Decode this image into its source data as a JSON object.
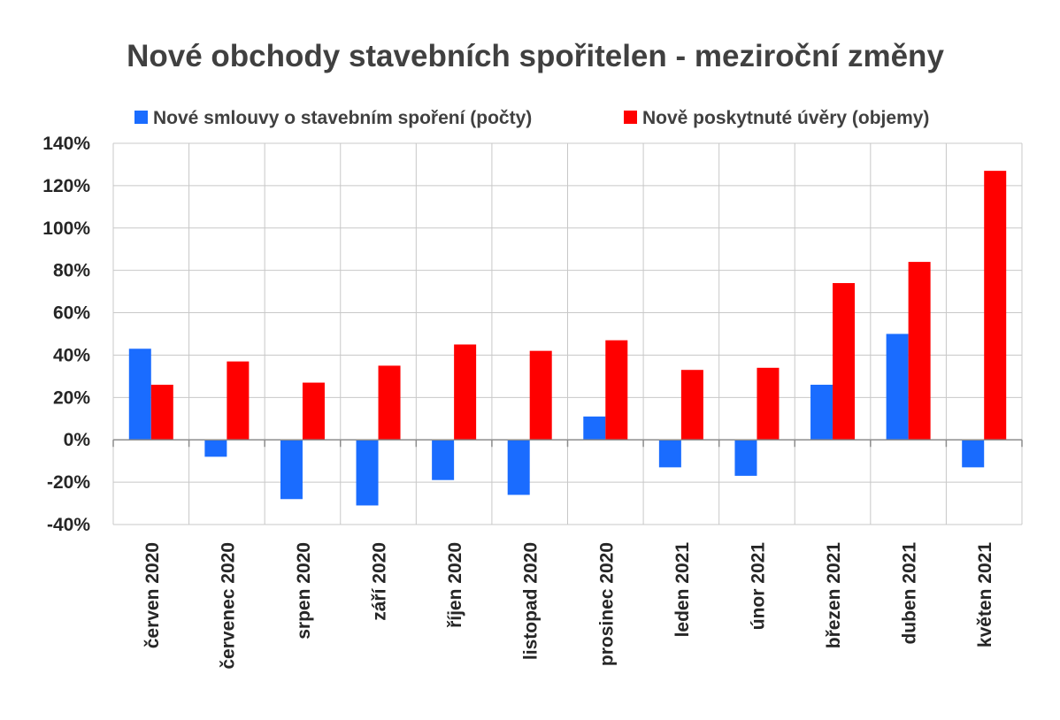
{
  "chart_data": {
    "type": "bar",
    "title": "Nové obchody stavebních spořitelen - meziroční změny",
    "categories": [
      "červen 2020",
      "červenec 2020",
      "srpen 2020",
      "září 2020",
      "říjen 2020",
      "listopad 2020",
      "prosinec 2020",
      "leden 2021",
      "únor 2021",
      "březen 2021",
      "duben 2021",
      "květen 2021"
    ],
    "series": [
      {
        "name": "Nové smlouvy o stavebním spoření (počty)",
        "color": "#1a6cff",
        "values": [
          43,
          -8,
          -28,
          -31,
          -19,
          -26,
          11,
          -13,
          -17,
          26,
          50,
          -13
        ]
      },
      {
        "name": "Nově poskytnuté úvěry (objemy)",
        "color": "#ff0000",
        "values": [
          26,
          37,
          27,
          35,
          45,
          42,
          47,
          33,
          34,
          74,
          84,
          127
        ]
      }
    ],
    "ylim": [
      -40,
      140
    ],
    "yticks": [
      -40,
      -20,
      0,
      20,
      40,
      60,
      80,
      100,
      120,
      140
    ],
    "ytick_labels": [
      "-40%",
      "-20%",
      "0%",
      "20%",
      "40%",
      "60%",
      "80%",
      "100%",
      "120%",
      "140%"
    ],
    "xlabel": "",
    "ylabel": "",
    "grid": true,
    "legend_position": "top"
  }
}
